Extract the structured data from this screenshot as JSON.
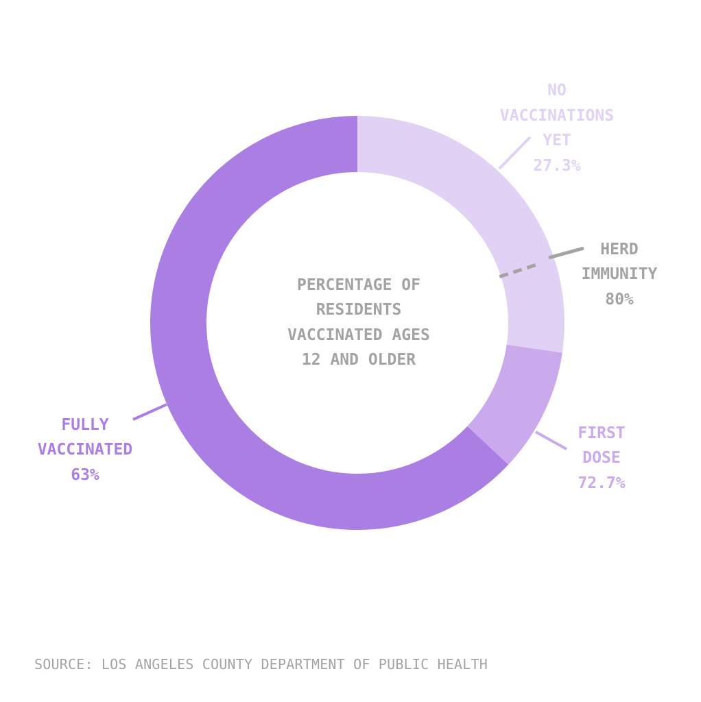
{
  "colors": {
    "fully": "#ab7ee3",
    "first": "#caa9ec",
    "none": "#e1d1f5",
    "herd": "#a3a3a3",
    "text_gray": "#a3a3a3"
  },
  "center_label": {
    "line1": "PERCENTAGE OF",
    "line2": "RESIDENTS",
    "line3": "VACCINATED AGES",
    "line4": "12 AND OLDER"
  },
  "labels": {
    "fully": {
      "line1": "FULLY",
      "line2": "VACCINATED",
      "line3": "63%"
    },
    "first": {
      "line1": "FIRST",
      "line2": "DOSE",
      "line3": "72.7%"
    },
    "none": {
      "line1": "NO",
      "line2": "VACCINATIONS",
      "line3": "YET",
      "line4": "27.3%"
    },
    "herd": {
      "line1": "HERD",
      "line2": "IMMUNITY",
      "line3": "80%"
    }
  },
  "source": "SOURCE: LOS ANGELES COUNTY DEPARTMENT OF PUBLIC HEALTH",
  "chart_data": {
    "type": "pie",
    "style": "donut",
    "slices": [
      {
        "name": "FULLY VACCINATED",
        "value": 63,
        "color": "#ab7ee3"
      },
      {
        "name": "FIRST DOSE",
        "value": 9.7,
        "color": "#caa9ec"
      },
      {
        "name": "NO VACCINATIONS YET",
        "value": 27.3,
        "color": "#e1d1f5"
      }
    ],
    "cumulative_labels": {
      "fully": 63,
      "first_dose": 72.7,
      "none": 27.3
    },
    "threshold": {
      "name": "HERD IMMUNITY",
      "value": 80
    },
    "start_direction": "counter-clockwise from top"
  }
}
